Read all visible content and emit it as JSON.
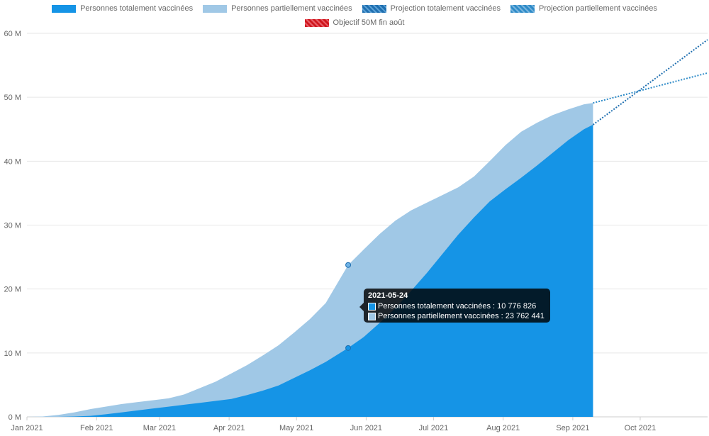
{
  "legend": [
    {
      "label": "Personnes totalement vaccinées",
      "color": "#1594e6",
      "style": "solid"
    },
    {
      "label": "Personnes partiellement vaccinées",
      "color": "#a0c8e6",
      "style": "solid"
    },
    {
      "label": "Projection totalement vaccinées",
      "color": "#1f6fb0",
      "style": "dotted"
    },
    {
      "label": "Projection partiellement vaccinées",
      "color": "#2e8bc8",
      "style": "dotted"
    },
    {
      "label": "Objectif 50M fin août",
      "color": "#d0181f",
      "style": "dotted"
    }
  ],
  "tooltip": {
    "date": "2021-05-24",
    "rows": [
      {
        "text": "Personnes totalement vaccinées : 10 776 826",
        "color": "#1594e6"
      },
      {
        "text": "Personnes partiellement vaccinées : 23 762 441",
        "color": "#a0c8e6"
      }
    ]
  },
  "chart_data": {
    "type": "area",
    "x_ticks": [
      "Jan 2021",
      "Feb 2021",
      "Mar 2021",
      "Apr 2021",
      "May 2021",
      "Jun 2021",
      "Jul 2021",
      "Aug 2021",
      "Sep 2021",
      "Oct 2021"
    ],
    "x_range": [
      "2021-01-01",
      "2021-10-31"
    ],
    "y_ticks": [
      "0 M",
      "10 M",
      "20 M",
      "30 M",
      "40 M",
      "50 M",
      "60 M"
    ],
    "ylim": [
      0,
      60000000
    ],
    "grid": true,
    "legend_position": "top",
    "series": [
      {
        "name": "Personnes partiellement vaccinées",
        "color": "#a0c8e6",
        "style": "area",
        "points": [
          [
            "2021-01-01",
            0
          ],
          [
            "2021-01-08",
            50000
          ],
          [
            "2021-01-15",
            300000
          ],
          [
            "2021-01-22",
            700000
          ],
          [
            "2021-01-29",
            1200000
          ],
          [
            "2021-02-05",
            1600000
          ],
          [
            "2021-02-12",
            2000000
          ],
          [
            "2021-02-19",
            2300000
          ],
          [
            "2021-02-26",
            2600000
          ],
          [
            "2021-03-05",
            2900000
          ],
          [
            "2021-03-12",
            3500000
          ],
          [
            "2021-03-19",
            4500000
          ],
          [
            "2021-03-26",
            5500000
          ],
          [
            "2021-04-02",
            6800000
          ],
          [
            "2021-04-09",
            8100000
          ],
          [
            "2021-04-16",
            9600000
          ],
          [
            "2021-04-23",
            11200000
          ],
          [
            "2021-04-30",
            13200000
          ],
          [
            "2021-05-07",
            15300000
          ],
          [
            "2021-05-14",
            17800000
          ],
          [
            "2021-05-24",
            23762441
          ],
          [
            "2021-05-31",
            26200000
          ],
          [
            "2021-06-07",
            28600000
          ],
          [
            "2021-06-14",
            30700000
          ],
          [
            "2021-06-21",
            32300000
          ],
          [
            "2021-06-28",
            33500000
          ],
          [
            "2021-07-05",
            34700000
          ],
          [
            "2021-07-12",
            35900000
          ],
          [
            "2021-07-19",
            37600000
          ],
          [
            "2021-07-26",
            40000000
          ],
          [
            "2021-08-02",
            42500000
          ],
          [
            "2021-08-09",
            44600000
          ],
          [
            "2021-08-16",
            46000000
          ],
          [
            "2021-08-23",
            47200000
          ],
          [
            "2021-08-30",
            48100000
          ],
          [
            "2021-09-06",
            48900000
          ],
          [
            "2021-09-10",
            49100000
          ]
        ]
      },
      {
        "name": "Personnes totalement vaccinées",
        "color": "#1594e6",
        "style": "area",
        "points": [
          [
            "2021-01-01",
            0
          ],
          [
            "2021-01-15",
            0
          ],
          [
            "2021-01-22",
            50000
          ],
          [
            "2021-01-29",
            150000
          ],
          [
            "2021-02-05",
            400000
          ],
          [
            "2021-02-12",
            700000
          ],
          [
            "2021-02-19",
            1000000
          ],
          [
            "2021-02-26",
            1300000
          ],
          [
            "2021-03-05",
            1600000
          ],
          [
            "2021-03-12",
            1900000
          ],
          [
            "2021-03-19",
            2200000
          ],
          [
            "2021-03-26",
            2500000
          ],
          [
            "2021-04-02",
            2800000
          ],
          [
            "2021-04-09",
            3400000
          ],
          [
            "2021-04-16",
            4100000
          ],
          [
            "2021-04-23",
            4900000
          ],
          [
            "2021-04-30",
            6100000
          ],
          [
            "2021-05-07",
            7300000
          ],
          [
            "2021-05-14",
            8600000
          ],
          [
            "2021-05-24",
            10776826
          ],
          [
            "2021-05-31",
            12500000
          ],
          [
            "2021-06-07",
            14700000
          ],
          [
            "2021-06-14",
            17000000
          ],
          [
            "2021-06-21",
            19700000
          ],
          [
            "2021-06-28",
            22500000
          ],
          [
            "2021-07-05",
            25500000
          ],
          [
            "2021-07-12",
            28500000
          ],
          [
            "2021-07-19",
            31200000
          ],
          [
            "2021-07-26",
            33700000
          ],
          [
            "2021-08-02",
            35600000
          ],
          [
            "2021-08-09",
            37400000
          ],
          [
            "2021-08-16",
            39300000
          ],
          [
            "2021-08-23",
            41300000
          ],
          [
            "2021-08-30",
            43300000
          ],
          [
            "2021-09-06",
            45000000
          ],
          [
            "2021-09-10",
            45700000
          ]
        ]
      },
      {
        "name": "Projection totalement vaccinées",
        "color": "#1f6fb0",
        "style": "dotted",
        "points": [
          [
            "2021-09-10",
            45700000
          ],
          [
            "2021-10-31",
            59000000
          ]
        ]
      },
      {
        "name": "Projection partiellement vaccinées",
        "color": "#2e8bc8",
        "style": "dotted",
        "points": [
          [
            "2021-09-10",
            49100000
          ],
          [
            "2021-10-31",
            53800000
          ]
        ]
      }
    ],
    "highlight": {
      "date": "2021-05-24",
      "values": [
        10776826,
        23762441
      ]
    }
  }
}
